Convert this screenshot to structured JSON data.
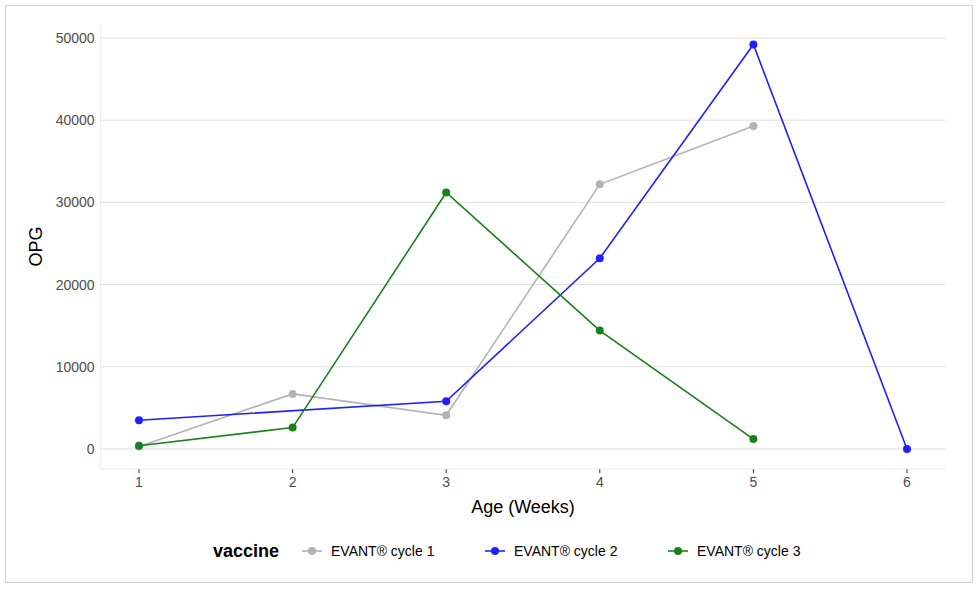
{
  "chart_data": {
    "type": "line",
    "x_label": "Age (Weeks)",
    "y_label": "OPG",
    "legend_title": "vaccine",
    "series": [
      {
        "name": "EVANT® cycle 1",
        "color": "#b3b3b3",
        "marker": "circle",
        "x": [
          1,
          2,
          3,
          4,
          5
        ],
        "values": [
          300,
          6700,
          4100,
          32200,
          39300
        ]
      },
      {
        "name": "EVANT® cycle 2",
        "color": "#1f1fff",
        "marker": "circle",
        "x": [
          1,
          3,
          4,
          5,
          6
        ],
        "values": [
          3500,
          5800,
          23200,
          49200,
          0
        ]
      },
      {
        "name": "EVANT® cycle 3",
        "color": "#1a801a",
        "marker": "circle",
        "x": [
          1,
          2,
          3,
          4,
          5
        ],
        "values": [
          400,
          2600,
          31200,
          14400,
          1200
        ]
      }
    ],
    "xlim": [
      0.75,
      6.25
    ],
    "xticks": [
      1,
      2,
      3,
      4,
      5,
      6
    ],
    "ylim": [
      -2460,
      51700
    ],
    "yticks": [
      0,
      10000,
      20000,
      30000,
      40000,
      50000
    ],
    "grid": true,
    "legend": "bottom"
  }
}
